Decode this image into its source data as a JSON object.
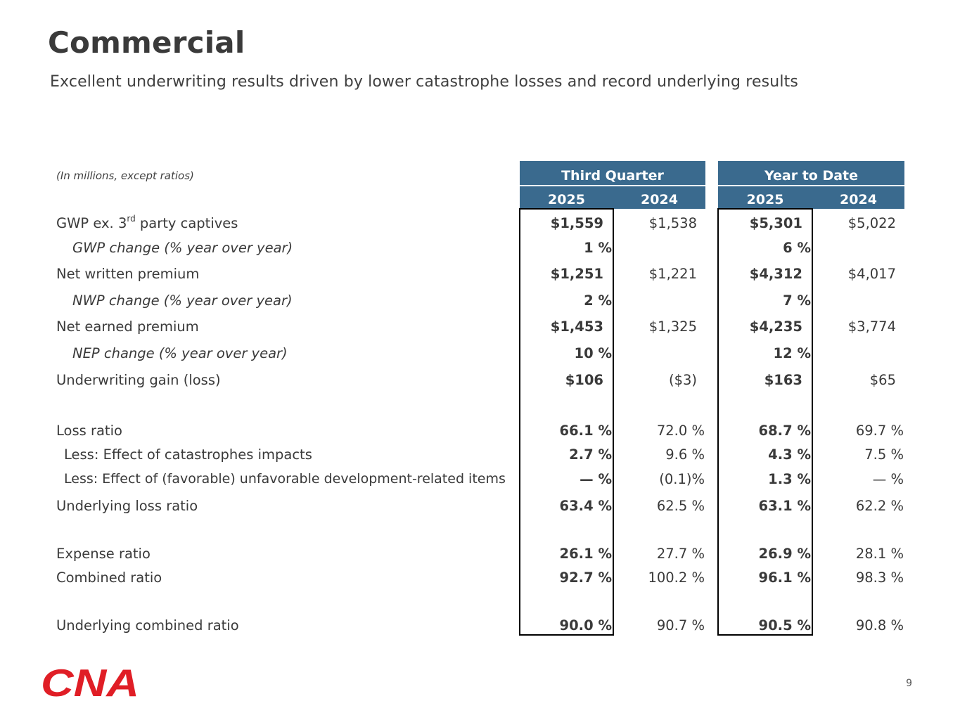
{
  "page": {
    "title": "Commercial",
    "subtitle": "Excellent underwriting results driven by lower catastrophe losses and record underlying results",
    "page_number": "9"
  },
  "table": {
    "units_note": "(In millions, except ratios)",
    "group_headers": {
      "third_quarter": "Third Quarter",
      "year_to_date": "Year to Date"
    },
    "year_headers": {
      "q_2025": "2025",
      "q_2024": "2024",
      "y_2025": "2025",
      "y_2024": "2024"
    },
    "rows": {
      "gwp": {
        "label_prefix": "GWP ex. 3",
        "label_sup": "rd",
        "label_suffix": " party captives",
        "q25": "$1,559",
        "q24": "$1,538",
        "y25": "$5,301",
        "y24": "$5,022"
      },
      "gwp_change": {
        "label": "GWP change (% year over year)",
        "q25": "1 %",
        "y25": "6 %"
      },
      "nwp": {
        "label": "Net written premium",
        "q25": "$1,251",
        "q24": "$1,221",
        "y25": "$4,312",
        "y24": "$4,017"
      },
      "nwp_change": {
        "label": "NWP change (% year over year)",
        "q25": "2 %",
        "y25": "7 %"
      },
      "nep": {
        "label": "Net earned premium",
        "q25": "$1,453",
        "q24": "$1,325",
        "y25": "$4,235",
        "y24": "$3,774"
      },
      "nep_change": {
        "label": "NEP change (% year over year)",
        "q25": "10 %",
        "y25": "12 %"
      },
      "uw_gain": {
        "label": "Underwriting gain (loss)",
        "q25": "$106",
        "q24": "($3)",
        "y25": "$163",
        "y24": "$65"
      },
      "loss_ratio": {
        "label": "Loss ratio",
        "q25": "66.1 %",
        "q24": "72.0 %",
        "y25": "68.7 %",
        "y24": "69.7 %"
      },
      "cat": {
        "label": "Less: Effect of catastrophes impacts",
        "q25": "2.7 %",
        "q24": "9.6 %",
        "y25": "4.3 %",
        "y24": "7.5 %"
      },
      "dev": {
        "label": "Less: Effect of (favorable) unfavorable development-related items",
        "q25": "— %",
        "q24": "(0.1)%",
        "y25": "1.3 %",
        "y24": "— %"
      },
      "underlying_loss": {
        "label": "Underlying loss ratio",
        "q25": "63.4 %",
        "q24": "62.5 %",
        "y25": "63.1 %",
        "y24": "62.2 %"
      },
      "expense": {
        "label": "Expense ratio",
        "q25": "26.1 %",
        "q24": "27.7 %",
        "y25": "26.9 %",
        "y24": "28.1 %"
      },
      "combined": {
        "label": "Combined ratio",
        "q25": "92.7 %",
        "q24": "100.2 %",
        "y25": "96.1 %",
        "y24": "98.3 %"
      },
      "underlying_combined": {
        "label": "Underlying combined ratio",
        "q25": "90.0 %",
        "q24": "90.7 %",
        "y25": "90.5 %",
        "y24": "90.8 %"
      }
    }
  },
  "logo": {
    "text": "CNA",
    "color": "#e01e26"
  },
  "colors": {
    "header_bg": "#3a6a8e"
  }
}
